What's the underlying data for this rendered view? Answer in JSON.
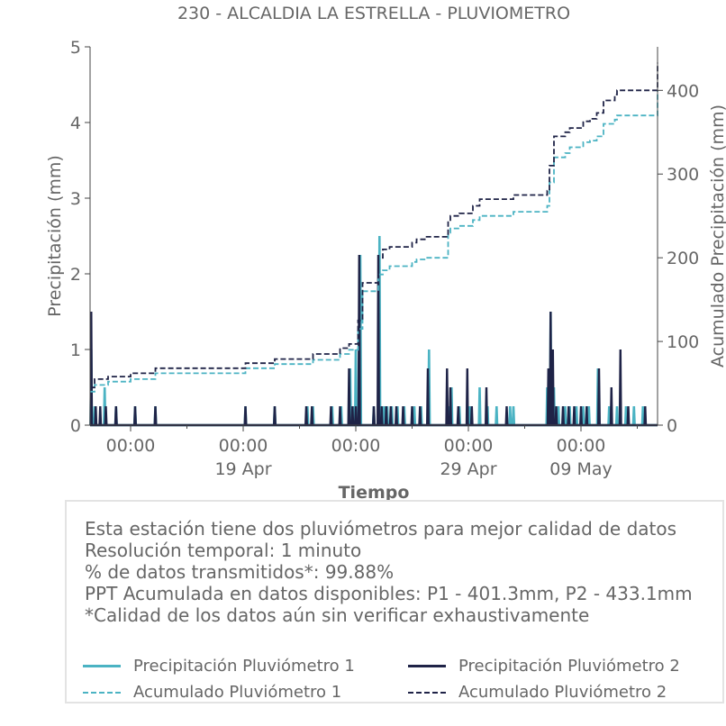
{
  "chart_data": {
    "type": "line",
    "title": "230 - ALCALDIA LA ESTRELLA - PLUVIOMETRO",
    "xlabel": "Tiempo",
    "ylabel": "Precipitación (mm)",
    "y2label": "Acumulado Precipitación (mm)",
    "xlim": [
      6.7,
      31.9
    ],
    "ylim": [
      0,
      5
    ],
    "y2lim": [
      0,
      452
    ],
    "yticks": [
      "0",
      "1",
      "2",
      "3",
      "4",
      "5"
    ],
    "y2ticks": [
      "0",
      "100",
      "200",
      "300",
      "400"
    ],
    "xticks_major": [
      {
        "x": 8.5,
        "label": "00:00",
        "sublabel": ""
      },
      {
        "x": 13.5,
        "label": "00:00",
        "sublabel": "19 Apr"
      },
      {
        "x": 18.5,
        "label": "00:00",
        "sublabel": ""
      },
      {
        "x": 23.5,
        "label": "00:00",
        "sublabel": "29 Apr"
      },
      {
        "x": 28.5,
        "label": "00:00",
        "sublabel": "09 May"
      }
    ],
    "grid": false,
    "legend_position": "bottom",
    "series": [
      {
        "name": "Precipitación Pluviómetro 1",
        "style": "solid",
        "axis": "left",
        "color": "#4bb3c3",
        "events": [
          [
            6.75,
            1.0
          ],
          [
            6.9,
            0.25
          ],
          [
            7.35,
            0.5
          ],
          [
            7.85,
            0.25
          ],
          [
            8.7,
            0.25
          ],
          [
            9.6,
            0.25
          ],
          [
            13.6,
            0.25
          ],
          [
            14.9,
            0.25
          ],
          [
            16.35,
            0.25
          ],
          [
            16.6,
            0.25
          ],
          [
            17.45,
            0.25
          ],
          [
            17.85,
            0.25
          ],
          [
            18.25,
            0.75
          ],
          [
            18.45,
            0.25
          ],
          [
            18.5,
            1.0
          ],
          [
            18.7,
            2.25
          ],
          [
            19.3,
            0.25
          ],
          [
            19.55,
            2.5
          ],
          [
            19.75,
            0.25
          ],
          [
            19.9,
            0.25
          ],
          [
            20.1,
            0.25
          ],
          [
            20.35,
            0.25
          ],
          [
            20.65,
            0.25
          ],
          [
            21.1,
            0.25
          ],
          [
            21.4,
            0.25
          ],
          [
            21.75,
            1.0
          ],
          [
            22.6,
            0.25
          ],
          [
            22.75,
            0.5
          ],
          [
            23.1,
            0.25
          ],
          [
            23.55,
            0.25
          ],
          [
            24.0,
            0.5
          ],
          [
            24.35,
            0.25
          ],
          [
            24.75,
            0.25
          ],
          [
            25.35,
            0.25
          ],
          [
            25.5,
            0.25
          ],
          [
            27.0,
            0.5
          ],
          [
            27.15,
            1.5
          ],
          [
            27.2,
            1.0
          ],
          [
            27.3,
            0.5
          ],
          [
            27.5,
            0.25
          ],
          [
            27.8,
            0.25
          ],
          [
            28.0,
            0.25
          ],
          [
            28.3,
            0.25
          ],
          [
            28.6,
            0.25
          ],
          [
            28.85,
            0.25
          ],
          [
            29.25,
            0.75
          ],
          [
            29.75,
            0.25
          ],
          [
            30.1,
            0.25
          ],
          [
            30.5,
            0.25
          ],
          [
            30.85,
            0.25
          ],
          [
            31.25,
            0.25
          ]
        ]
      },
      {
        "name": "Precipitación Pluviómetro 2",
        "style": "solid",
        "axis": "left",
        "color": "#1f2347",
        "events": [
          [
            6.75,
            1.5
          ],
          [
            6.95,
            0.25
          ],
          [
            7.15,
            0.25
          ],
          [
            7.4,
            0.25
          ],
          [
            7.85,
            0.25
          ],
          [
            8.7,
            0.25
          ],
          [
            9.6,
            0.25
          ],
          [
            13.6,
            0.25
          ],
          [
            14.9,
            0.25
          ],
          [
            16.3,
            0.25
          ],
          [
            16.55,
            0.25
          ],
          [
            17.4,
            0.25
          ],
          [
            17.8,
            0.25
          ],
          [
            18.2,
            0.75
          ],
          [
            18.35,
            0.25
          ],
          [
            18.5,
            0.25
          ],
          [
            18.65,
            2.25
          ],
          [
            19.3,
            0.25
          ],
          [
            19.5,
            2.25
          ],
          [
            19.65,
            0.25
          ],
          [
            19.85,
            0.25
          ],
          [
            20.05,
            0.25
          ],
          [
            20.3,
            0.25
          ],
          [
            20.6,
            0.25
          ],
          [
            21.0,
            0.25
          ],
          [
            21.35,
            0.25
          ],
          [
            21.7,
            0.75
          ],
          [
            22.55,
            0.75
          ],
          [
            22.7,
            0.5
          ],
          [
            23.05,
            0.25
          ],
          [
            23.45,
            0.75
          ],
          [
            23.65,
            0.25
          ],
          [
            24.3,
            0.5
          ],
          [
            25.2,
            0.25
          ],
          [
            27.05,
            0.75
          ],
          [
            27.15,
            1.5
          ],
          [
            27.25,
            1.0
          ],
          [
            27.4,
            0.25
          ],
          [
            27.7,
            0.25
          ],
          [
            27.95,
            0.25
          ],
          [
            28.2,
            0.25
          ],
          [
            28.5,
            0.25
          ],
          [
            28.75,
            0.25
          ],
          [
            29.3,
            0.75
          ],
          [
            29.85,
            0.5
          ],
          [
            30.25,
            1.0
          ],
          [
            30.6,
            0.25
          ],
          [
            31.35,
            0.25
          ]
        ]
      },
      {
        "name": "Acumulado Pluviómetro 1",
        "style": "dashed",
        "axis": "right",
        "color": "#4bb3c3",
        "x": [
          6.7,
          6.9,
          7.5,
          8.5,
          9.6,
          13.6,
          14.9,
          16.6,
          17.8,
          18.2,
          18.6,
          18.8,
          19.5,
          19.7,
          20.0,
          21.0,
          21.2,
          21.6,
          22.6,
          22.7,
          23.1,
          23.7,
          24.0,
          25.5,
          27.0,
          27.1,
          27.3,
          27.8,
          28.0,
          28.6,
          28.9,
          29.2,
          29.5,
          30.0,
          30.1,
          31.9
        ],
        "y": [
          40,
          48,
          52,
          55,
          62,
          68,
          73,
          78,
          85,
          90,
          115,
          160,
          180,
          185,
          190,
          195,
          198,
          200,
          230,
          235,
          238,
          245,
          250,
          255,
          262,
          290,
          320,
          325,
          332,
          338,
          340,
          345,
          360,
          365,
          370,
          400
        ]
      },
      {
        "name": "Acumulado Pluviómetro 2",
        "style": "dashed",
        "axis": "right",
        "color": "#1f2347",
        "x": [
          6.7,
          6.9,
          7.5,
          8.5,
          9.6,
          13.6,
          14.9,
          16.6,
          17.8,
          18.2,
          18.6,
          18.8,
          19.5,
          19.7,
          20.0,
          21.0,
          21.2,
          21.6,
          22.6,
          22.7,
          23.1,
          23.7,
          24.0,
          25.5,
          27.0,
          27.1,
          27.3,
          27.8,
          28.0,
          28.6,
          28.9,
          29.2,
          29.5,
          30.0,
          30.1,
          31.9
        ],
        "y": [
          45,
          55,
          58,
          62,
          68,
          74,
          79,
          85,
          92,
          97,
          125,
          170,
          200,
          210,
          213,
          218,
          222,
          225,
          245,
          250,
          253,
          262,
          270,
          275,
          280,
          310,
          345,
          350,
          355,
          363,
          366,
          373,
          388,
          395,
          400,
          433
        ]
      }
    ]
  },
  "info": {
    "lines": [
      "Esta estación tiene dos pluviómetros para mejor calidad de datos",
      "Resolución temporal: 1 minuto",
      "% de datos transmitidos*: 99.88%",
      "PPT Acumulada en datos disponibles: P1 - 401.3mm, P2 - 433.1mm",
      "*Calidad de los datos aún sin verificar exhaustivamente"
    ]
  },
  "legend": {
    "p1": "Precipitación Pluviómetro 1",
    "p2": "Precipitación Pluviómetro 2",
    "a1": "Acumulado Pluviómetro 1",
    "a2": "Acumulado Pluviómetro 2"
  },
  "colors": {
    "p1": "#4bb3c3",
    "p2": "#1f2347",
    "text": "#666666",
    "axis": "#444444"
  }
}
